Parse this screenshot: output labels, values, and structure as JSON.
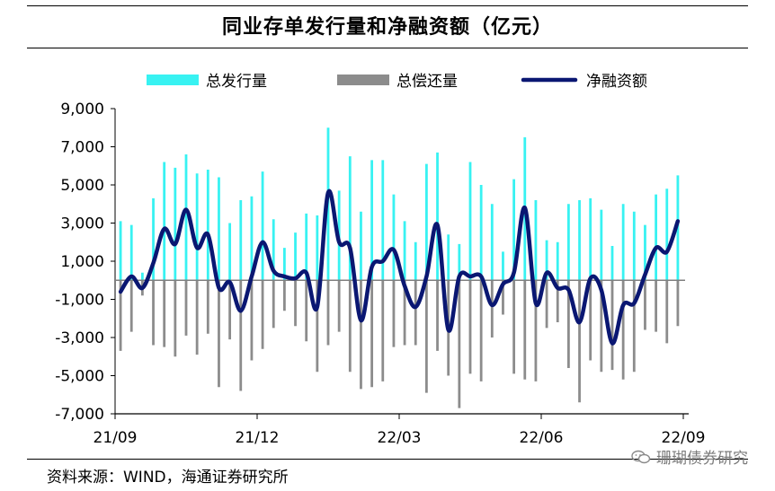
{
  "chart_data": {
    "type": "bar+line",
    "title": "同业存单发行量和净融资额（亿元）",
    "legend": [
      "总发行量",
      "总偿还量",
      "净融资额"
    ],
    "y_ticks": [
      9000,
      7000,
      5000,
      3000,
      1000,
      -1000,
      -3000,
      -5000,
      -7000
    ],
    "y_tick_labels": [
      "9,000",
      "7,000",
      "5,000",
      "3,000",
      "1,000",
      "-1,000",
      "-3,000",
      "-5,000",
      "-7,000"
    ],
    "ylim": [
      -7000,
      9000
    ],
    "x_tick_labels": [
      "21/09",
      "21/12",
      "22/03",
      "22/06",
      "22/09"
    ],
    "x_tick_index": [
      0,
      13,
      26,
      39,
      52
    ],
    "issuance": [
      3100,
      2900,
      400,
      4300,
      6200,
      5900,
      6600,
      5600,
      5800,
      5400,
      3000,
      4200,
      4400,
      5700,
      3200,
      1700,
      2500,
      3500,
      3400,
      8000,
      4700,
      6500,
      3600,
      6300,
      6300,
      4500,
      3100,
      2000,
      6100,
      6700,
      2400,
      1900,
      6200,
      5000,
      4000,
      1500,
      5300,
      7500,
      4200,
      2100,
      2000,
      4000,
      4200,
      4300,
      3700,
      1800,
      4000,
      3600,
      2900,
      4500,
      4800,
      5500
    ],
    "repayment": [
      -3700,
      -2700,
      -800,
      -3400,
      -3500,
      -4000,
      -2900,
      -3900,
      -2800,
      -5600,
      -3100,
      -5800,
      -4200,
      -3600,
      -2500,
      -1600,
      -2400,
      -3200,
      -4800,
      -3400,
      -2700,
      -4800,
      -5700,
      -5600,
      -5300,
      -3500,
      -3400,
      -3400,
      -5900,
      -3700,
      -5000,
      -6700,
      -4900,
      -5300,
      -3000,
      -1800,
      -4900,
      -5200,
      -5300,
      -2500,
      -2200,
      -4600,
      -6400,
      -4200,
      -4800,
      -4700,
      -5200,
      -4800,
      -2600,
      -2700,
      -3300,
      -2400
    ],
    "net": [
      -600,
      200,
      -400,
      900,
      2700,
      1900,
      3700,
      1700,
      2400,
      -400,
      -100,
      -1600,
      200,
      2000,
      500,
      200,
      100,
      400,
      -1400,
      4600,
      2000,
      1700,
      -2100,
      700,
      1000,
      1600,
      -300,
      -1400,
      200,
      2900,
      -2600,
      200,
      200,
      200,
      -1300,
      -200,
      400,
      3800,
      -1200,
      400,
      -400,
      -500,
      -2200,
      100,
      -500,
      -3300,
      -1300,
      -1200,
      300,
      1700,
      1500,
      3100
    ],
    "colors": {
      "issuance": "#38f2f2",
      "repayment": "#8c8c8c",
      "net": "#0a1772"
    }
  },
  "source_note": "资料来源：WIND，海通证券研究所",
  "watermark": "珊瑚债券研究"
}
